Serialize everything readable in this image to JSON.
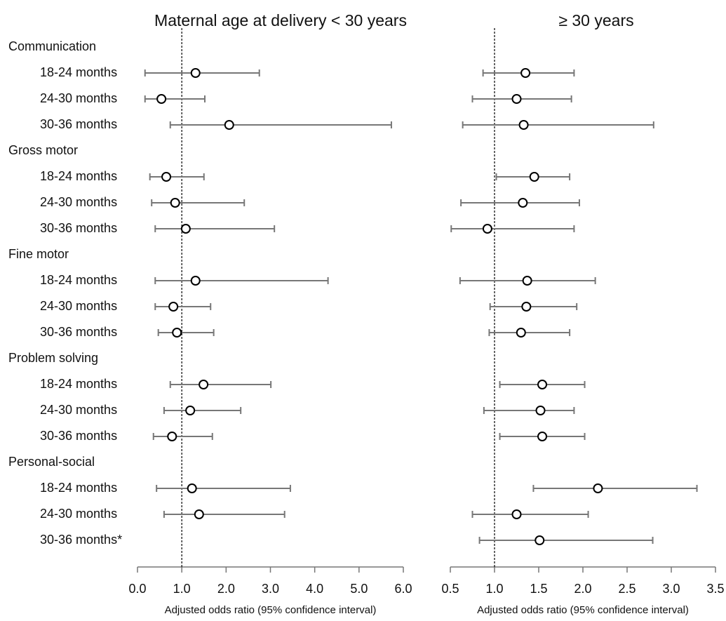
{
  "chart_data": [
    {
      "type": "forest",
      "title": "Maternal age at delivery < 30 years",
      "x_label": "Adjusted odds ratio (95% confidence interval)",
      "groups": [
        {
          "name": "Communication",
          "categories": [
            "18-24 months",
            "24-30 months",
            "30-36 months"
          ]
        },
        {
          "name": "Gross motor",
          "categories": [
            "18-24 months",
            "24-30 months",
            "30-36 months"
          ]
        },
        {
          "name": "Fine motor",
          "categories": [
            "18-24 months",
            "24-30 months",
            "30-36 months"
          ]
        },
        {
          "name": "Problem solving",
          "categories": [
            "18-24 months",
            "24-30 months",
            "30-36 months"
          ]
        },
        {
          "name": "Personal-social",
          "categories": [
            "18-24 months",
            "24-30 months",
            "30-36 months*"
          ]
        }
      ],
      "values": [
        1.31,
        0.54,
        2.07,
        0.65,
        0.85,
        1.09,
        1.31,
        0.81,
        0.89,
        1.49,
        1.19,
        0.78,
        1.23,
        1.39,
        null
      ],
      "lower": [
        0.17,
        0.17,
        0.74,
        0.28,
        0.32,
        0.4,
        0.4,
        0.4,
        0.47,
        0.74,
        0.6,
        0.36,
        0.43,
        0.6,
        null
      ],
      "upper": [
        2.75,
        1.52,
        5.73,
        1.5,
        2.41,
        3.09,
        4.3,
        1.65,
        1.72,
        3.01,
        2.33,
        1.69,
        3.45,
        3.32,
        null
      ],
      "xlim": [
        0,
        6
      ],
      "xticks": [
        {
          "value": 0,
          "label": "0.0"
        },
        {
          "value": 1,
          "label": "1.0"
        },
        {
          "value": 2,
          "label": "2.0"
        },
        {
          "value": 3,
          "label": "3.0"
        },
        {
          "value": 4,
          "label": "4.0"
        },
        {
          "value": 5,
          "label": "5.0"
        },
        {
          "value": 6,
          "label": "6.0"
        }
      ],
      "reference_line": 1,
      "color": "#777777"
    },
    {
      "type": "forest",
      "title": "≥ 30 years",
      "x_label": "Adjusted odds ratio (95% confidence interval)",
      "values": [
        1.35,
        1.25,
        1.33,
        1.45,
        1.32,
        0.92,
        1.37,
        1.36,
        1.3,
        1.54,
        1.52,
        1.54,
        2.17,
        1.25,
        1.51
      ],
      "lower": [
        0.87,
        0.75,
        0.64,
        1.02,
        0.62,
        0.51,
        0.61,
        0.95,
        0.94,
        1.06,
        0.88,
        1.06,
        1.44,
        0.75,
        0.83
      ],
      "upper": [
        1.9,
        1.87,
        2.8,
        1.85,
        1.96,
        1.9,
        2.14,
        1.93,
        1.85,
        2.02,
        1.9,
        2.02,
        3.29,
        2.06,
        2.79
      ],
      "xlim": [
        0.5,
        3.5
      ],
      "xticks": [
        0.5,
        {
          "value": 1,
          "label": "1.0"
        },
        1.5,
        {
          "value": 2,
          "label": "2.0"
        },
        2.5,
        {
          "value": 3,
          "label": "3.0"
        },
        3.5
      ],
      "reference_line": 1,
      "color": "#777777"
    }
  ]
}
